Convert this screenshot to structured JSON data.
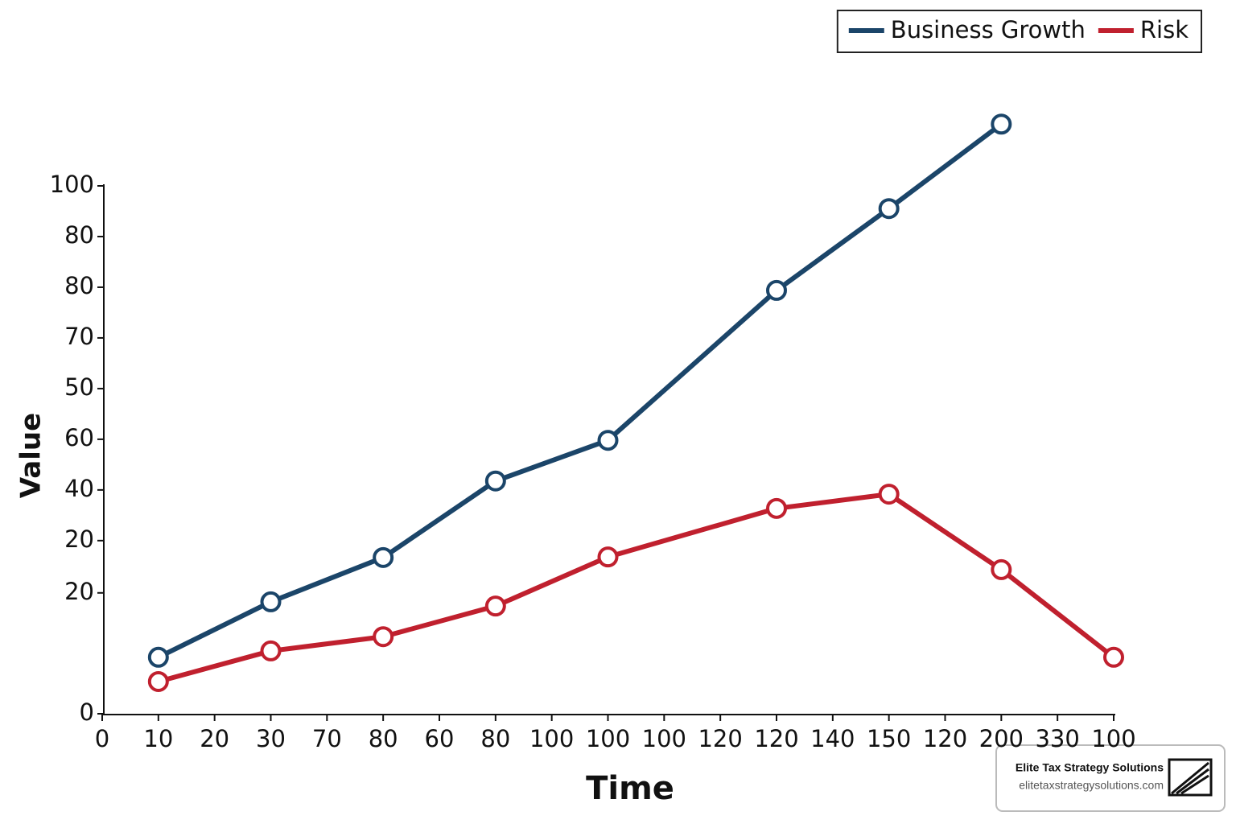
{
  "chart_data": {
    "type": "line",
    "x_label": "Time",
    "y_label": "Value",
    "xlim": [
      0,
      18
    ],
    "ylim": [
      0,
      100
    ],
    "xticks": [
      {
        "value": 0,
        "label": "0"
      },
      {
        "value": 1,
        "label": "10"
      },
      {
        "value": 2,
        "label": "20"
      },
      {
        "value": 3,
        "label": "30"
      },
      {
        "value": 4,
        "label": "70"
      },
      {
        "value": 5,
        "label": "80"
      },
      {
        "value": 6,
        "label": "60"
      },
      {
        "value": 7,
        "label": "80"
      },
      {
        "value": 8,
        "label": "100"
      },
      {
        "value": 9,
        "label": "100"
      },
      {
        "value": 10,
        "label": "100"
      },
      {
        "value": 11,
        "label": "120"
      },
      {
        "value": 12,
        "label": "120"
      },
      {
        "value": 13,
        "label": "140"
      },
      {
        "value": 14,
        "label": "150"
      },
      {
        "value": 15,
        "label": "120"
      },
      {
        "value": 16,
        "label": "200"
      },
      {
        "value": 17,
        "label": "330"
      },
      {
        "value": 18,
        "label": "100"
      }
    ],
    "yticks": [
      0,
      {
        "value": 22.9,
        "label": "20"
      },
      {
        "value": 32.8,
        "label": "20"
      },
      {
        "value": 42.4,
        "label": "40"
      },
      {
        "value": 52,
        "label": "60"
      },
      {
        "value": 61.6,
        "label": "50"
      },
      {
        "value": 71.2,
        "label": "70"
      },
      {
        "value": 80.8,
        "label": "80"
      },
      {
        "value": 90.4,
        "label": "80"
      },
      100
    ],
    "legend": "top-right",
    "series": [
      {
        "name": "Business Growth",
        "color": "#1b4569",
        "x": [
          1,
          3,
          5,
          7,
          9,
          12,
          14,
          16
        ],
        "values": [
          10.7,
          21.2,
          29.6,
          44.1,
          51.8,
          80.2,
          95.7,
          111.7
        ]
      },
      {
        "name": "Risk",
        "color": "#c0202e",
        "x": [
          1,
          3,
          5,
          7,
          9,
          12,
          14,
          16,
          18
        ],
        "values": [
          6.1,
          11.9,
          14.6,
          20.4,
          29.7,
          38.9,
          41.6,
          27.3,
          10.7
        ]
      }
    ]
  },
  "watermark": {
    "title": "Elite Tax Strategy Solutions",
    "url": "elitetaxstrategysolutions.com"
  }
}
